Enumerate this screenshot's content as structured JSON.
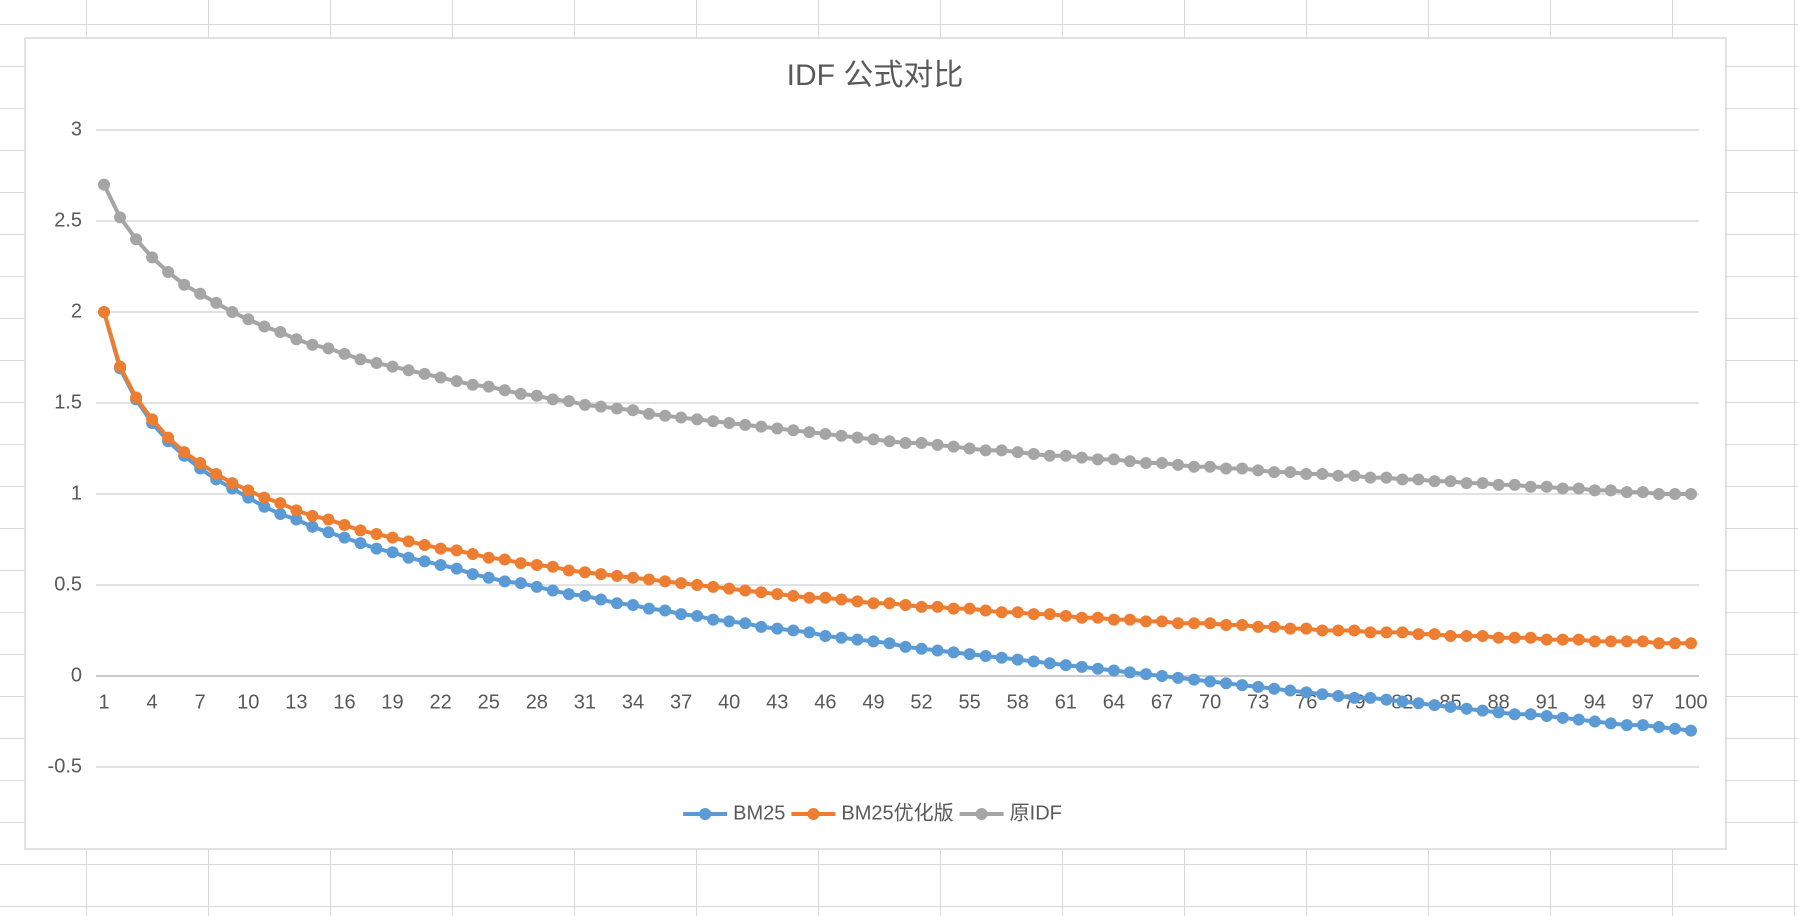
{
  "chart_data": {
    "type": "line",
    "title": "IDF 公式对比",
    "categories": [
      "1",
      null,
      null,
      "4",
      null,
      null,
      "7",
      null,
      null,
      "10",
      null,
      null,
      "13",
      null,
      null,
      "16",
      null,
      null,
      "19",
      null,
      null,
      "22",
      null,
      null,
      "25",
      null,
      null,
      "28",
      null,
      null,
      "31",
      null,
      null,
      "34",
      null,
      null,
      "37",
      null,
      null,
      "40",
      null,
      null,
      "43",
      null,
      null,
      "46",
      null,
      null,
      "49",
      null,
      null,
      "52",
      null,
      null,
      "55",
      null,
      null,
      "58",
      null,
      null,
      "61",
      null,
      null,
      "64",
      null,
      null,
      "67",
      null,
      null,
      "70",
      null,
      null,
      "73",
      null,
      null,
      "76",
      null,
      null,
      "79",
      null,
      null,
      "82",
      null,
      null,
      "85",
      null,
      null,
      "88",
      null,
      null,
      "91",
      null,
      null,
      "94",
      null,
      null,
      "97",
      null,
      null,
      "100"
    ],
    "series": [
      {
        "name": "BM25",
        "color": "#5b9bd5",
        "values": [
          2.0,
          1.69,
          1.52,
          1.39,
          1.29,
          1.21,
          1.14,
          1.08,
          1.03,
          0.98,
          0.93,
          0.89,
          0.86,
          0.82,
          0.79,
          0.76,
          0.73,
          0.7,
          0.68,
          0.65,
          0.63,
          0.61,
          0.59,
          0.56,
          0.54,
          0.52,
          0.51,
          0.49,
          0.47,
          0.45,
          0.44,
          0.42,
          0.4,
          0.39,
          0.37,
          0.36,
          0.34,
          0.33,
          0.31,
          0.3,
          0.29,
          0.27,
          0.26,
          0.25,
          0.24,
          0.22,
          0.21,
          0.2,
          0.19,
          0.18,
          0.16,
          0.15,
          0.14,
          0.13,
          0.12,
          0.11,
          0.1,
          0.09,
          0.08,
          0.07,
          0.06,
          0.05,
          0.04,
          0.03,
          0.02,
          0.01,
          0,
          -0.01,
          -0.02,
          -0.03,
          -0.04,
          -0.05,
          -0.06,
          -0.07,
          -0.08,
          -0.09,
          -0.1,
          -0.11,
          -0.12,
          -0.12,
          -0.13,
          -0.14,
          -0.15,
          -0.16,
          -0.17,
          -0.18,
          -0.19,
          -0.2,
          -0.21,
          -0.21,
          -0.22,
          -0.23,
          -0.24,
          -0.25,
          -0.26,
          -0.27,
          -0.27,
          -0.28,
          -0.29,
          -0.3
        ]
      },
      {
        "name": "BM25优化版",
        "color": "#ed7d31",
        "values": [
          2.0,
          1.7,
          1.53,
          1.41,
          1.31,
          1.23,
          1.17,
          1.11,
          1.06,
          1.02,
          0.98,
          0.95,
          0.91,
          0.88,
          0.86,
          0.83,
          0.8,
          0.78,
          0.76,
          0.74,
          0.72,
          0.7,
          0.69,
          0.67,
          0.65,
          0.64,
          0.62,
          0.61,
          0.6,
          0.58,
          0.57,
          0.56,
          0.55,
          0.54,
          0.53,
          0.52,
          0.51,
          0.5,
          0.49,
          0.48,
          0.47,
          0.46,
          0.45,
          0.44,
          0.43,
          0.43,
          0.42,
          0.41,
          0.4,
          0.4,
          0.39,
          0.38,
          0.38,
          0.37,
          0.37,
          0.36,
          0.35,
          0.35,
          0.34,
          0.34,
          0.33,
          0.32,
          0.32,
          0.31,
          0.31,
          0.3,
          0.3,
          0.29,
          0.29,
          0.29,
          0.28,
          0.28,
          0.27,
          0.27,
          0.26,
          0.26,
          0.25,
          0.25,
          0.25,
          0.24,
          0.24,
          0.24,
          0.23,
          0.23,
          0.22,
          0.22,
          0.22,
          0.21,
          0.21,
          0.21,
          0.2,
          0.2,
          0.2,
          0.19,
          0.19,
          0.19,
          0.19,
          0.18,
          0.18,
          0.18
        ]
      },
      {
        "name": "原IDF",
        "color": "#a5a5a5",
        "values": [
          2.7,
          2.52,
          2.4,
          2.3,
          2.22,
          2.15,
          2.1,
          2.05,
          2.0,
          1.96,
          1.92,
          1.89,
          1.85,
          1.82,
          1.8,
          1.77,
          1.74,
          1.72,
          1.7,
          1.68,
          1.66,
          1.64,
          1.62,
          1.6,
          1.59,
          1.57,
          1.55,
          1.54,
          1.52,
          1.51,
          1.49,
          1.48,
          1.47,
          1.46,
          1.44,
          1.43,
          1.42,
          1.41,
          1.4,
          1.39,
          1.38,
          1.37,
          1.36,
          1.35,
          1.34,
          1.33,
          1.32,
          1.31,
          1.3,
          1.29,
          1.28,
          1.28,
          1.27,
          1.26,
          1.25,
          1.24,
          1.24,
          1.23,
          1.22,
          1.21,
          1.21,
          1.2,
          1.19,
          1.19,
          1.18,
          1.17,
          1.17,
          1.16,
          1.15,
          1.15,
          1.14,
          1.14,
          1.13,
          1.12,
          1.12,
          1.11,
          1.11,
          1.1,
          1.1,
          1.09,
          1.09,
          1.08,
          1.08,
          1.07,
          1.07,
          1.06,
          1.06,
          1.05,
          1.05,
          1.04,
          1.04,
          1.03,
          1.03,
          1.02,
          1.02,
          1.01,
          1.01,
          1.0,
          1.0,
          1.0
        ]
      }
    ],
    "ylim": [
      -0.5,
      3
    ],
    "yticks": [
      -0.5,
      0,
      0.5,
      1,
      1.5,
      2,
      2.5,
      3
    ],
    "grid": true,
    "legend": "bottom"
  }
}
